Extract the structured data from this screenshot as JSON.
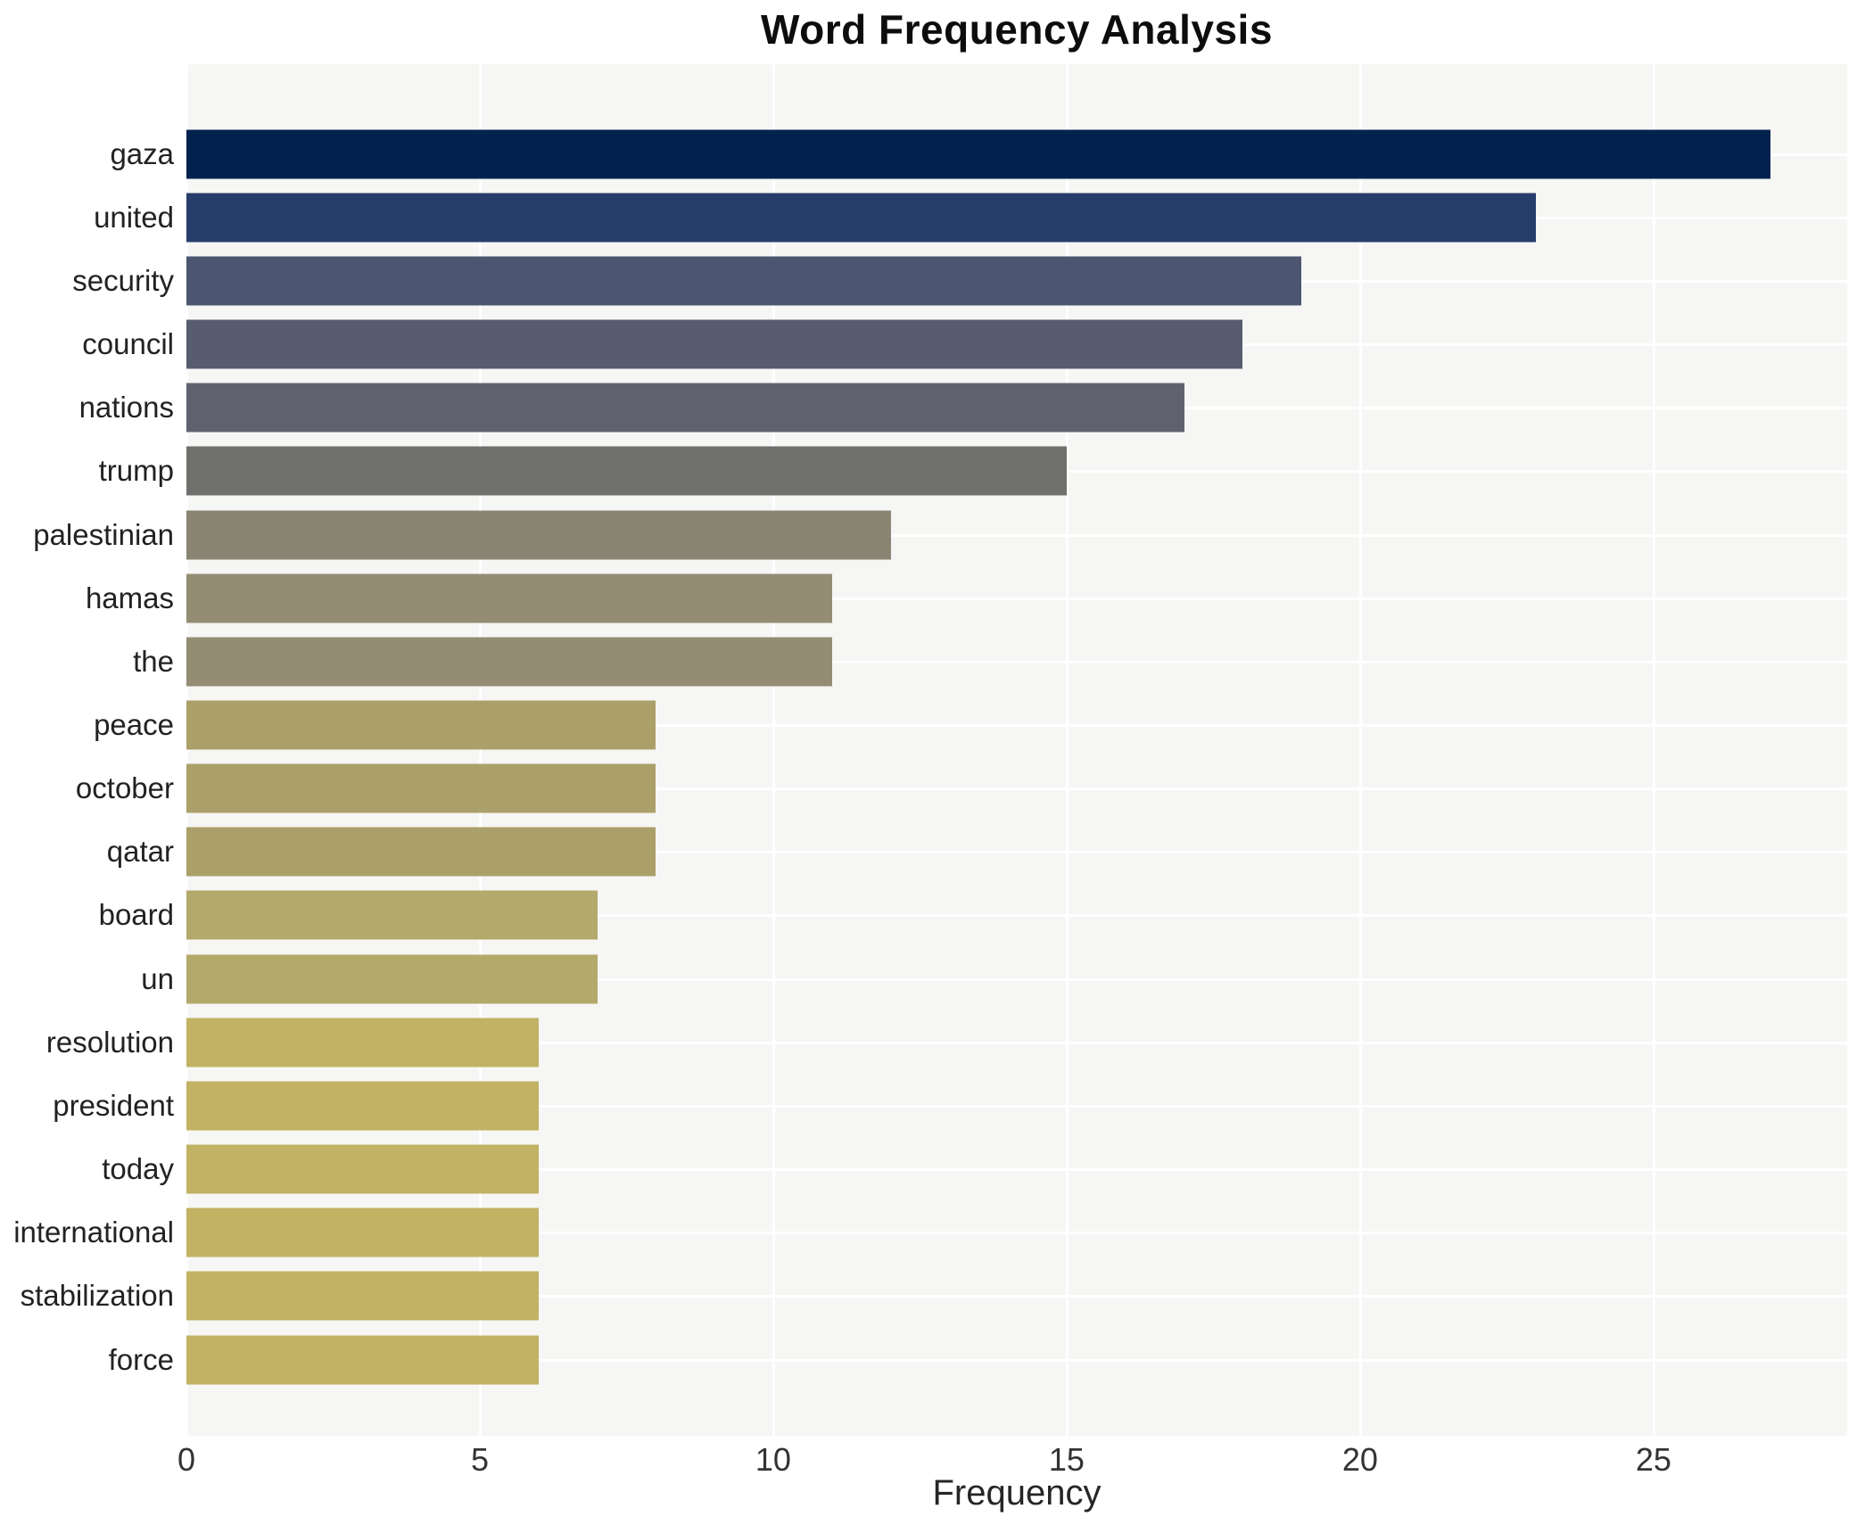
{
  "chart": {
    "title": "Word Frequency Analysis",
    "xlabel": "Frequency"
  },
  "chart_data": {
    "type": "bar",
    "orientation": "horizontal",
    "title": "Word Frequency Analysis",
    "xlabel": "Frequency",
    "ylabel": "",
    "categories": [
      "gaza",
      "united",
      "security",
      "council",
      "nations",
      "trump",
      "palestinian",
      "hamas",
      "the",
      "peace",
      "october",
      "qatar",
      "board",
      "un",
      "resolution",
      "president",
      "today",
      "international",
      "stabilization",
      "force"
    ],
    "values": [
      27,
      23,
      19,
      18,
      17,
      15,
      12,
      11,
      11,
      8,
      8,
      8,
      7,
      7,
      6,
      6,
      6,
      6,
      6,
      6
    ],
    "bar_colors": [
      "#01224e",
      "#273e6b",
      "#4d5671",
      "#575c6f",
      "#5f626e",
      "#6f6f6d",
      "#8a8473",
      "#948d74",
      "#948d74",
      "#aba069",
      "#aba069",
      "#aba069",
      "#b3a96a",
      "#b3a96a",
      "#c1b264",
      "#c1b264",
      "#c1b264",
      "#c1b264",
      "#c1b264",
      "#c1b264"
    ],
    "xlim": [
      0,
      28.3
    ],
    "xticks": [
      0,
      5,
      10,
      15,
      20,
      25
    ],
    "grid": true,
    "legend": false,
    "plot_background": "#f6f6f5",
    "grid_color": "#ffffff"
  }
}
